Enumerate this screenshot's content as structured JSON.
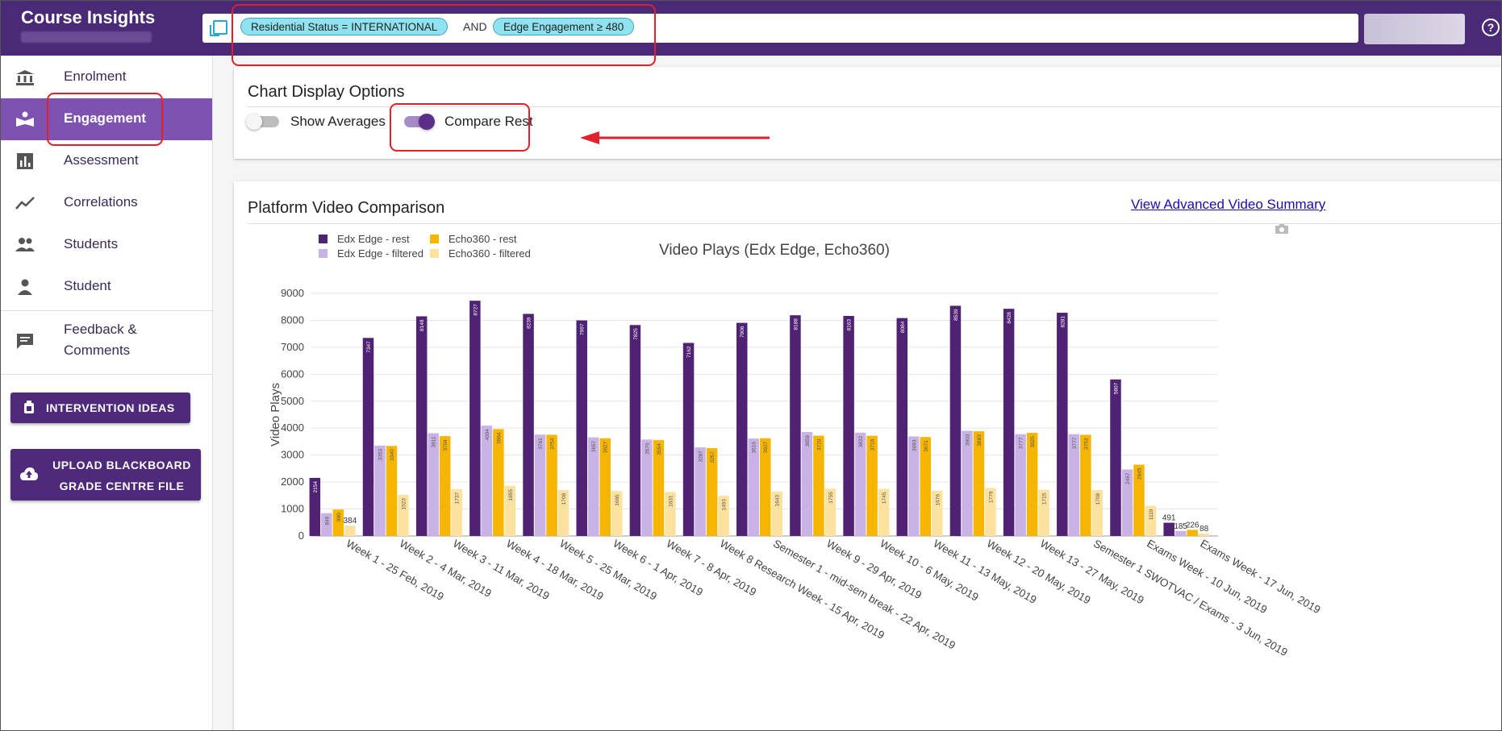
{
  "header": {
    "app_title": "Course Insights",
    "filter": {
      "chips": [
        "Residential Status = INTERNATIONAL",
        "Edge Engagement ≥ 480"
      ],
      "operator": "AND"
    },
    "help": "?"
  },
  "sidebar": {
    "items": [
      {
        "label": "Enrolment",
        "icon": "bank-icon"
      },
      {
        "label": "Engagement",
        "icon": "reading-icon",
        "active": true
      },
      {
        "label": "Assessment",
        "icon": "bar-chart-icon"
      },
      {
        "label": "Correlations",
        "icon": "trend-icon"
      },
      {
        "label": "Students",
        "icon": "people-icon"
      },
      {
        "label": "Student",
        "icon": "person-icon"
      },
      {
        "label_line1": "Feedback &",
        "label_line2": "Comments",
        "icon": "comment-icon"
      }
    ],
    "intervention_button": "INTERVENTION IDEAS",
    "upload_button_line1": "UPLOAD BLACKBOARD",
    "upload_button_line2": "GRADE CENTRE FILE"
  },
  "display_options": {
    "title": "Chart Display Options",
    "show_averages": {
      "label": "Show Averages",
      "on": false
    },
    "compare_rest": {
      "label": "Compare Rest",
      "on": true
    }
  },
  "video_card": {
    "title": "Platform Video Comparison",
    "link": "View Advanced Video Summary"
  },
  "colors": {
    "header": "#4a2a77",
    "accent": "#7d52b1",
    "edx_rest": "#4f2274",
    "edx_filtered": "#c9b3e6",
    "echo_rest": "#f6b500",
    "echo_filtered": "#fde19e",
    "annotation": "#e0202a"
  },
  "chart_data": {
    "type": "bar",
    "title": "Video Plays (Edx Edge, Echo360)",
    "ylabel": "Video Plays",
    "xlabel": "",
    "ylim": [
      0,
      9000
    ],
    "yticks": [
      0,
      1000,
      2000,
      3000,
      4000,
      5000,
      6000,
      7000,
      8000,
      9000
    ],
    "legend_position": "top-left",
    "grid": true,
    "categories": [
      "Week 1 - 25 Feb, 2019",
      "Week 2 - 4 Mar, 2019",
      "Week 3 - 11 Mar, 2019",
      "Week 4 - 18 Mar, 2019",
      "Week 5 - 25 Mar, 2019",
      "Week 6 - 1 Apr, 2019",
      "Week 7 - 8 Apr, 2019",
      "Week 8 Research Week - 15 Apr, 2019",
      "Semester 1 - mid-sem break - 22 Apr, 2019",
      "Week 9 - 29 Apr, 2019",
      "Week 10 - 6 May, 2019",
      "Week 11 - 13 May, 2019",
      "Week 12 - 20 May, 2019",
      "Week 13 - 27 May, 2019",
      "Semester 1 SWOTVAC / Exams - 3 Jun, 2019",
      "Exams Week - 10 Jun, 2019",
      "Exams Week - 17 Jun, 2019"
    ],
    "series": [
      {
        "name": "Edx Edge - rest",
        "values": [
          2154,
          7347,
          8148,
          8727,
          8239,
          7997,
          7825,
          7162,
          7906,
          8188,
          8163,
          8084,
          8539,
          8428,
          8281,
          5807,
          491
        ]
      },
      {
        "name": "Edx Edge - filtered",
        "values": [
          846,
          3353,
          3811,
          4094,
          3761,
          3657,
          3576,
          3287,
          3616,
          3859,
          3832,
          3693,
          3903,
          3777,
          3777,
          2467,
          185
        ]
      },
      {
        "name": "Echo360 - rest",
        "values": [
          980,
          3340,
          3704,
          3964,
          3754,
          3627,
          3554,
          3257,
          3627,
          3720,
          3716,
          3671,
          3883,
          3825,
          3753,
          2645,
          226
        ]
      },
      {
        "name": "Echo360 - filtered",
        "values": [
          384,
          1523,
          1737,
          1855,
          1708,
          1665,
          1631,
          1493,
          1643,
          1755,
          1745,
          1676,
          1779,
          1715,
          1708,
          1119,
          88
        ]
      }
    ]
  }
}
